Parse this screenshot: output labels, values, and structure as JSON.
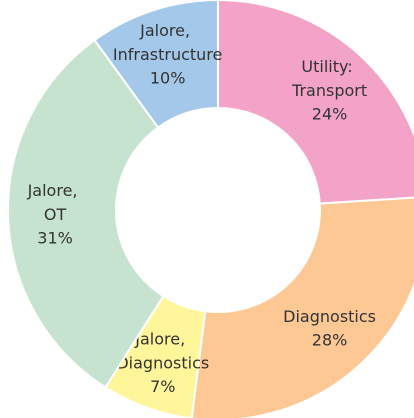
{
  "chart_data": {
    "type": "pie",
    "categories": [
      "Utility: Transport",
      "Diagnostics",
      "Jalore, Diagnostics",
      "Jalore, OT",
      "Jalore, Infrastructure"
    ],
    "values": [
      24,
      28,
      7,
      31,
      10
    ],
    "value_labels": [
      "24%",
      "28%",
      "7%",
      "31%",
      "10%"
    ],
    "colors": [
      "#f4a3c8",
      "#fdc894",
      "#fff59a",
      "#c6e3cf",
      "#a4c8e9"
    ]
  }
}
